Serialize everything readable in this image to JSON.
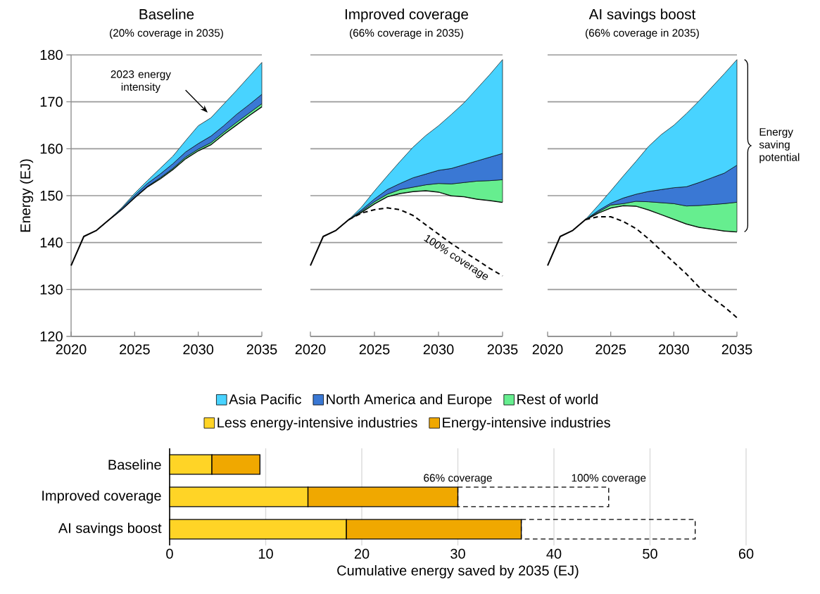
{
  "chart_data": [
    {
      "type": "area",
      "title": "Baseline",
      "subtitle": "(20% coverage in 2035)",
      "ylabel": "Energy (EJ)",
      "grid": "y",
      "legend": "bottom",
      "x": [
        2020,
        2021,
        2022,
        2023,
        2024,
        2025,
        2026,
        2027,
        2028,
        2029,
        2030,
        2031,
        2032,
        2033,
        2034,
        2035
      ],
      "series": [
        {
          "type": "line",
          "color": "#000000",
          "values": [
            135.1,
            141.3,
            142.6,
            144.9,
            147.1,
            149.6,
            151.9,
            153.6,
            155.6,
            157.9,
            159.6,
            160.9,
            163.1,
            165.1,
            167.1,
            169.0
          ]
        },
        {
          "name": "Rest of world",
          "color": "#66EE8F",
          "x": [
            2023,
            2024,
            2025,
            2026,
            2027,
            2028,
            2029,
            2030,
            2031,
            2032,
            2033,
            2034,
            2035
          ],
          "values": [
            144.9,
            147.1,
            149.7,
            152.0,
            153.8,
            155.8,
            158.2,
            159.9,
            161.3,
            163.5,
            165.6,
            167.6,
            169.6
          ]
        },
        {
          "name": "North America and Europe",
          "color": "#3A78D4",
          "x": [
            2023,
            2024,
            2025,
            2026,
            2027,
            2028,
            2029,
            2030,
            2031,
            2032,
            2033,
            2034,
            2035
          ],
          "values": [
            144.9,
            147.3,
            150.1,
            152.6,
            154.6,
            156.8,
            159.3,
            161.1,
            162.7,
            164.9,
            167.3,
            169.4,
            171.6
          ]
        },
        {
          "name": "Asia Pacific",
          "color": "#48D3FF",
          "x": [
            2023,
            2024,
            2025,
            2026,
            2027,
            2028,
            2029,
            2030,
            2031,
            2032,
            2033,
            2034,
            2035
          ],
          "values": [
            144.9,
            147.5,
            150.5,
            153.2,
            155.8,
            158.4,
            161.7,
            164.9,
            166.6,
            169.5,
            172.4,
            175.4,
            178.4
          ]
        }
      ],
      "xlim": [
        2020,
        2035
      ],
      "xticks": [
        2020,
        2025,
        2030,
        2035
      ],
      "ylim": [
        120,
        180
      ],
      "yticks": [
        120,
        130,
        140,
        150,
        160,
        170,
        180
      ],
      "annotations": [
        "2023 energy intensity"
      ]
    },
    {
      "type": "area",
      "title": "Improved coverage",
      "subtitle": "(66% coverage in 2035)",
      "grid": "y",
      "tick_labels": "x",
      "x": [
        2020,
        2021,
        2022,
        2023,
        2024,
        2025,
        2026,
        2027,
        2028,
        2029,
        2030,
        2031,
        2032,
        2033,
        2034,
        2035
      ],
      "series": [
        {
          "type": "line",
          "color": "#000000",
          "values": [
            135.1,
            141.3,
            142.6,
            144.9,
            146.5,
            148.3,
            149.8,
            150.5,
            150.9,
            151.1,
            150.8,
            150.0,
            149.8,
            149.3,
            149.0,
            148.6
          ]
        },
        {
          "color": "#66EE8F",
          "x": [
            2023,
            2024,
            2025,
            2026,
            2027,
            2028,
            2029,
            2030,
            2031,
            2032,
            2033,
            2034,
            2035
          ],
          "values": [
            144.9,
            146.7,
            148.7,
            150.3,
            151.3,
            151.8,
            152.3,
            152.6,
            152.5,
            152.8,
            153.1,
            153.2,
            153.4
          ]
        },
        {
          "color": "#3A78D4",
          "x": [
            2023,
            2024,
            2025,
            2026,
            2027,
            2028,
            2029,
            2030,
            2031,
            2032,
            2033,
            2034,
            2035
          ],
          "values": [
            144.9,
            147.0,
            149.3,
            151.3,
            152.6,
            153.8,
            154.6,
            155.4,
            155.8,
            156.6,
            157.4,
            158.2,
            159.0
          ]
        },
        {
          "color": "#48D3FF",
          "x": [
            2023,
            2024,
            2025,
            2026,
            2027,
            2028,
            2029,
            2030,
            2031,
            2032,
            2033,
            2034,
            2035
          ],
          "values": [
            144.9,
            147.6,
            151.0,
            154.2,
            157.3,
            160.3,
            162.8,
            164.9,
            167.3,
            169.8,
            172.8,
            175.8,
            179.0
          ]
        },
        {
          "type": "line",
          "color": "#000000",
          "line_style": "dashed",
          "x": [
            2023,
            2024,
            2025,
            2026,
            2027,
            2028,
            2029,
            2030,
            2031,
            2032,
            2033,
            2034,
            2035
          ],
          "values": [
            144.9,
            146.3,
            147.0,
            147.4,
            147.0,
            145.8,
            143.8,
            141.8,
            139.8,
            138.0,
            136.3,
            134.5,
            132.9
          ]
        }
      ],
      "xlim": [
        2020,
        2035
      ],
      "xticks": [
        2020,
        2025,
        2030,
        2035
      ],
      "ylim": [
        120,
        180
      ],
      "yticks": [
        120,
        130,
        140,
        150,
        160,
        170,
        180
      ],
      "annotations": [
        "100% coverage"
      ]
    },
    {
      "type": "area",
      "title": "AI savings boost",
      "subtitle": "(66% coverage in 2035)",
      "grid": "y",
      "tick_labels": "x",
      "x": [
        2020,
        2021,
        2022,
        2023,
        2024,
        2025,
        2026,
        2027,
        2028,
        2029,
        2030,
        2031,
        2032,
        2033,
        2034,
        2035
      ],
      "series": [
        {
          "type": "line",
          "color": "#000000",
          "values": [
            135.1,
            141.3,
            142.6,
            144.9,
            146.3,
            147.4,
            147.9,
            147.8,
            147.0,
            146.0,
            145.0,
            144.0,
            143.3,
            142.9,
            142.5,
            142.3
          ]
        },
        {
          "color": "#66EE8F",
          "x": [
            2023,
            2024,
            2025,
            2026,
            2027,
            2028,
            2029,
            2030,
            2031,
            2032,
            2033,
            2034,
            2035
          ],
          "values": [
            144.9,
            146.5,
            148.0,
            148.3,
            148.8,
            148.7,
            148.5,
            148.3,
            147.8,
            147.9,
            148.1,
            148.3,
            148.6
          ]
        },
        {
          "color": "#3A78D4",
          "x": [
            2023,
            2024,
            2025,
            2026,
            2027,
            2028,
            2029,
            2030,
            2031,
            2032,
            2033,
            2034,
            2035
          ],
          "values": [
            144.9,
            146.8,
            148.4,
            149.5,
            150.3,
            150.9,
            151.3,
            151.7,
            151.9,
            152.8,
            153.8,
            154.8,
            156.5
          ]
        },
        {
          "color": "#48D3FF",
          "x": [
            2023,
            2024,
            2025,
            2026,
            2027,
            2028,
            2029,
            2030,
            2031,
            2032,
            2033,
            2034,
            2035
          ],
          "values": [
            144.9,
            147.9,
            151.0,
            154.2,
            157.3,
            160.5,
            163.0,
            165.0,
            167.5,
            170.2,
            173.1,
            176.0,
            179.0
          ]
        },
        {
          "type": "line",
          "color": "#000000",
          "line_style": "dashed",
          "x": [
            2023,
            2024,
            2025,
            2026,
            2027,
            2028,
            2029,
            2030,
            2031,
            2032,
            2033,
            2034,
            2035
          ],
          "values": [
            144.9,
            145.5,
            145.5,
            144.5,
            143.0,
            140.8,
            138.3,
            135.8,
            133.3,
            130.5,
            128.3,
            126.3,
            124.0
          ]
        }
      ],
      "xlim": [
        2020,
        2035
      ],
      "xticks": [
        2020,
        2025,
        2030,
        2035
      ],
      "ylim": [
        120,
        180
      ],
      "yticks": [
        120,
        130,
        140,
        150,
        160,
        170,
        180
      ],
      "annotations": [
        "Energy saving potential"
      ]
    },
    {
      "type": "bar",
      "orientation": "horizontal",
      "stacked": true,
      "grid": "x",
      "legend": "top",
      "categories": [
        "Baseline",
        "Improved coverage",
        "AI savings boost"
      ],
      "series": [
        {
          "name": "Less energy-intensive industries",
          "color": "#FFD426",
          "values": [
            4.4,
            14.4,
            18.4
          ]
        },
        {
          "name": "Energy-intensive industries",
          "color": "#F0A800",
          "values": [
            5.0,
            15.6,
            18.2
          ]
        },
        {
          "color": "#000000",
          "line_style": "dashed",
          "values": [
            null,
            15.7,
            18.1
          ]
        }
      ],
      "xlim": [
        0,
        60
      ],
      "xticks": [
        0,
        10,
        20,
        30,
        40,
        50,
        60
      ],
      "xlabel": "Cumulative energy saved by 2035 (EJ)",
      "annotations": [
        {
          "text": "66% coverage",
          "x": 30,
          "y": "Improved coverage"
        },
        {
          "text": "100% coverage",
          "x": 45.7,
          "y": "Improved coverage"
        }
      ]
    }
  ]
}
